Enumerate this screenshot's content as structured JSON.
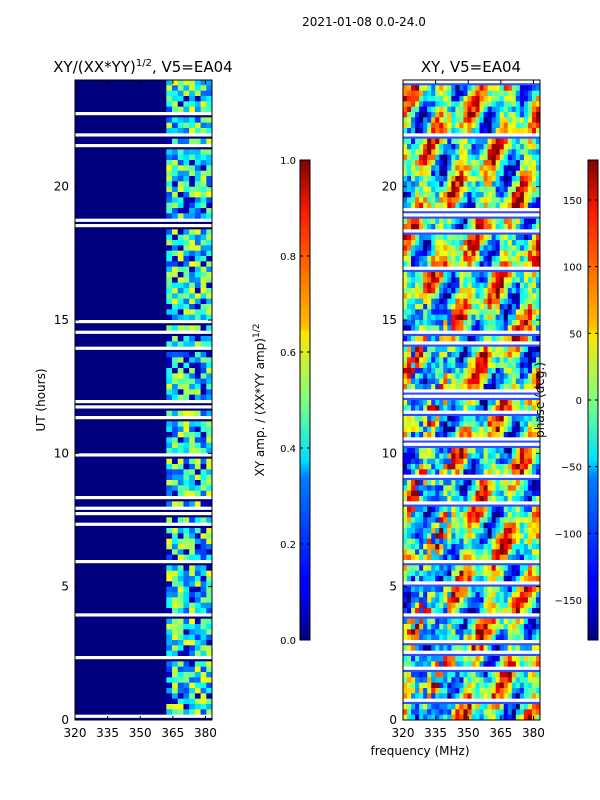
{
  "suptitle": "2021-01-08 0.0-24.0",
  "chart_data": [
    {
      "type": "heatmap",
      "title_main": "XY/(XX*YY)",
      "title_exp": "1/2",
      "title_tail": ", V5=EA04",
      "xlabel": "",
      "ylabel": "UT (hours)",
      "xlim": [
        320,
        383
      ],
      "ylim": [
        0,
        24
      ],
      "xticks": [
        320,
        335,
        350,
        365,
        380
      ],
      "yticks": [
        0,
        5,
        10,
        15,
        20
      ],
      "colorbar": {
        "label_main": "XY amp. / (XX*YY amp)",
        "label_exp": "1/2",
        "range": [
          0.0,
          1.0
        ],
        "ticks": [
          "0.0",
          "0.2",
          "0.4",
          "0.6",
          "0.8",
          "1.0"
        ],
        "tick_values": [
          0.0,
          0.2,
          0.4,
          0.6,
          0.8,
          1.0
        ],
        "colormap": "jet"
      }
    },
    {
      "type": "heatmap",
      "title": "XY, V5=EA04",
      "xlabel": "frequency (MHz)",
      "ylabel": "",
      "xlim": [
        320,
        383
      ],
      "ylim": [
        0,
        24
      ],
      "xticks": [
        320,
        335,
        350,
        365,
        380
      ],
      "yticks": [
        0,
        5,
        10,
        15,
        20
      ],
      "colorbar": {
        "label": "phase (deg.)",
        "range": [
          -180,
          180
        ],
        "ticks": [
          "−150",
          "−100",
          "−50",
          "0",
          "50",
          "100",
          "150"
        ],
        "tick_values": [
          -150,
          -100,
          -50,
          0,
          50,
          100,
          150
        ],
        "colormap": "jet"
      }
    }
  ]
}
